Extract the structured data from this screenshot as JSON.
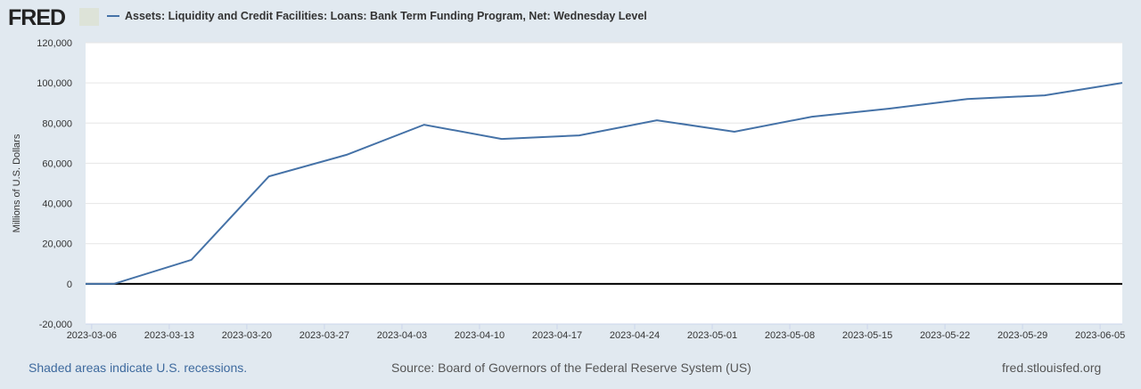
{
  "header": {
    "logo": "FRED",
    "legend_label": "Assets: Liquidity and Credit Facilities: Loans: Bank Term Funding Program, Net: Wednesday Level"
  },
  "footer": {
    "recessions": "Shaded areas indicate U.S. recessions.",
    "source": "Source: Board of Governors of the Federal Reserve System (US)",
    "site": "fred.stlouisfed.org"
  },
  "chart_data": {
    "type": "line",
    "title": "",
    "ylabel": "Millions of U.S. Dollars",
    "xlabel": "",
    "ylim": [
      -20000,
      120000
    ],
    "xlim": [
      "2023-03-05",
      "2023-06-07"
    ],
    "yticks": [
      -20000,
      0,
      20000,
      40000,
      60000,
      80000,
      100000,
      120000
    ],
    "ytick_labels": [
      "-20,000",
      "0",
      "20,000",
      "40,000",
      "60,000",
      "80,000",
      "100,000",
      "120,000"
    ],
    "xtick_labels": [
      "2023-03-06",
      "2023-03-13",
      "2023-03-20",
      "2023-03-27",
      "2023-04-03",
      "2023-04-10",
      "2023-04-17",
      "2023-04-24",
      "2023-05-01",
      "2023-05-08",
      "2023-05-15",
      "2023-05-22",
      "2023-05-29",
      "2023-06-05"
    ],
    "grid": true,
    "color": "#4572a7",
    "series": [
      {
        "name": "Assets: Liquidity and Credit Facilities: Loans: Bank Term Funding Program, Net: Wednesday Level",
        "x": [
          "2023-03-01",
          "2023-03-08",
          "2023-03-15",
          "2023-03-22",
          "2023-03-29",
          "2023-04-05",
          "2023-04-12",
          "2023-04-19",
          "2023-04-26",
          "2023-05-03",
          "2023-05-10",
          "2023-05-17",
          "2023-05-24",
          "2023-05-31",
          "2023-06-07"
        ],
        "y": [
          0,
          0,
          11950,
          53500,
          64200,
          79200,
          72100,
          73900,
          81400,
          75700,
          83200,
          87200,
          92000,
          93800,
          100000
        ]
      }
    ]
  }
}
